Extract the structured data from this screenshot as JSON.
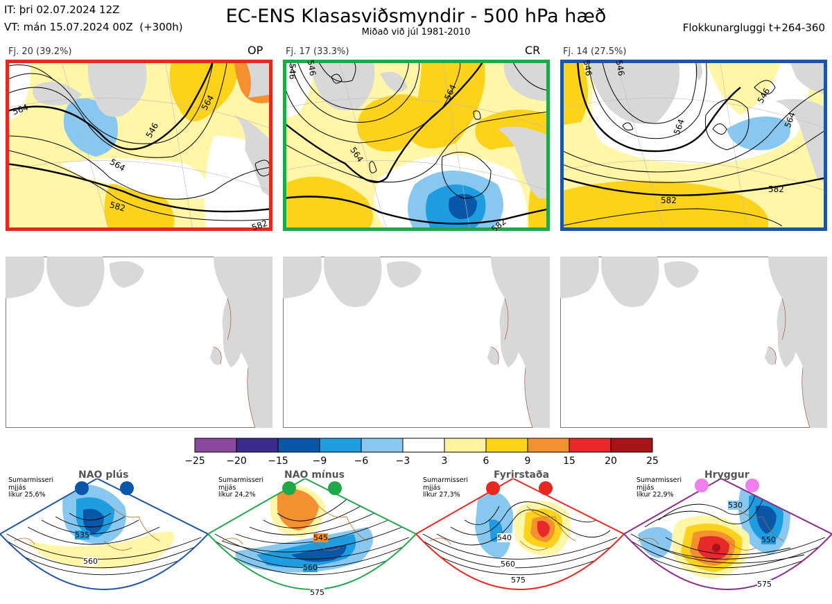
{
  "header": {
    "init_time": "IT: þri 02.07.2024 12Z",
    "valid_time": "VT: mán 15.07.2024 00Z  (+300h)",
    "title": "EC-ENS Klasasviðsmyndir - 500 hPa hæð",
    "subtitle": "Miðað við júl 1981-2010",
    "window": "Flokkunargluggi t+264-360"
  },
  "panels": [
    {
      "label": "Fj. 20 (39.2%)",
      "tag": "OP",
      "border_color": "#e8281e",
      "contour_labels": [
        "546",
        "564",
        "564",
        "564",
        "582",
        "582"
      ]
    },
    {
      "label": "Fj. 17 (33.3%)",
      "tag": "CR",
      "border_color": "#1ea84a",
      "contour_labels": [
        "546",
        "546",
        "564",
        "564",
        "582"
      ]
    },
    {
      "label": "Fj. 14 (27.5%)",
      "tag": "",
      "border_color": "#1a55a8",
      "contour_labels": [
        "546",
        "546",
        "546",
        "564",
        "564",
        "582",
        "582"
      ]
    }
  ],
  "colorbar": {
    "ticks": [
      "−25",
      "−20",
      "−15",
      "−9",
      "−6",
      "−3",
      "3",
      "6",
      "9",
      "15",
      "20",
      "25"
    ],
    "colors": [
      "#8b4aa0",
      "#3c2a8c",
      "#0a56a8",
      "#1e9ee0",
      "#88c8f0",
      "#ffffff",
      "#fff3a0",
      "#fcd21a",
      "#f49030",
      "#e8282a",
      "#a81418"
    ]
  },
  "regimes": [
    {
      "name": "NAO plús",
      "season": "Sumarmisseri",
      "speed": "mjjás",
      "prob": "líkur 25,6%",
      "border_color": "#1a55a8",
      "dot_color": "#0a56a8",
      "contour_labels": [
        "535",
        "560"
      ]
    },
    {
      "name": "NAO mínus",
      "season": "Sumarmisseri",
      "speed": "mjjás",
      "prob": "líkur 24,2%",
      "border_color": "#1ea84a",
      "dot_color": "#1ea84a",
      "contour_labels": [
        "545",
        "560",
        "575"
      ]
    },
    {
      "name": "Fyrirstaða",
      "season": "Sumarmisseri",
      "speed": "mjjás",
      "prob": "líkur 27,3%",
      "border_color": "#e8281e",
      "dot_color": "#e8281e",
      "contour_labels": [
        "540",
        "560",
        "575"
      ]
    },
    {
      "name": "Hryggur",
      "season": "Sumarmisseri",
      "speed": "mjjás",
      "prob": "líkur 22,9%",
      "border_color": "#8c2a8c",
      "dot_color": "#ee80ee",
      "contour_labels": [
        "530",
        "550",
        "575"
      ]
    }
  ]
}
